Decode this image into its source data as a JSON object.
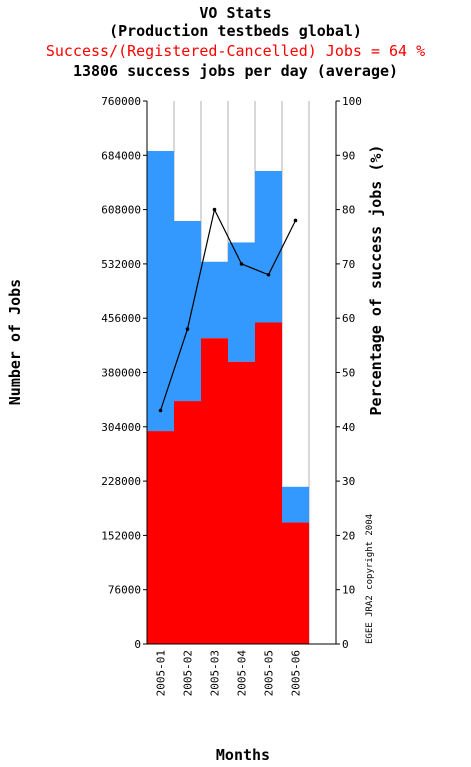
{
  "titles": {
    "line1": "VO Stats",
    "line2": "(Production testbeds global)",
    "line3": "Success/(Registered-Cancelled) Jobs = 64 %",
    "line4": "13806 success jobs per day (average)"
  },
  "copyright": "EGEE JRA2 copyright 2004",
  "colors": {
    "success": "#ff0000",
    "total": "#3399ff",
    "line": "#000000",
    "red_text": "#ff0000"
  },
  "chart_data": {
    "type": "bar",
    "stacked": true,
    "categories": [
      "2005-01",
      "2005-02",
      "2005-03",
      "2005-04",
      "2005-05",
      "2005-06"
    ],
    "series": [
      {
        "values": [
          298000,
          340000,
          428000,
          395000,
          450000,
          170000
        ]
      },
      {
        "values": [
          392000,
          252000,
          107000,
          167000,
          212000,
          50000
        ]
      }
    ],
    "line_series": {
      "values": [
        43,
        58,
        80,
        70,
        68,
        78
      ]
    },
    "xlabel": "Months",
    "ylabel": "Number of Jobs",
    "y2label": "Percentage of success jobs (%)",
    "ylim": [
      0,
      760000
    ],
    "y2lim": [
      0,
      100
    ],
    "yticks": [
      0,
      76000,
      152000,
      228000,
      304000,
      380000,
      456000,
      532000,
      608000,
      684000,
      760000
    ],
    "y2ticks": [
      0,
      10,
      20,
      30,
      40,
      50,
      60,
      70,
      80,
      90,
      100
    ],
    "grid": "vertical"
  }
}
